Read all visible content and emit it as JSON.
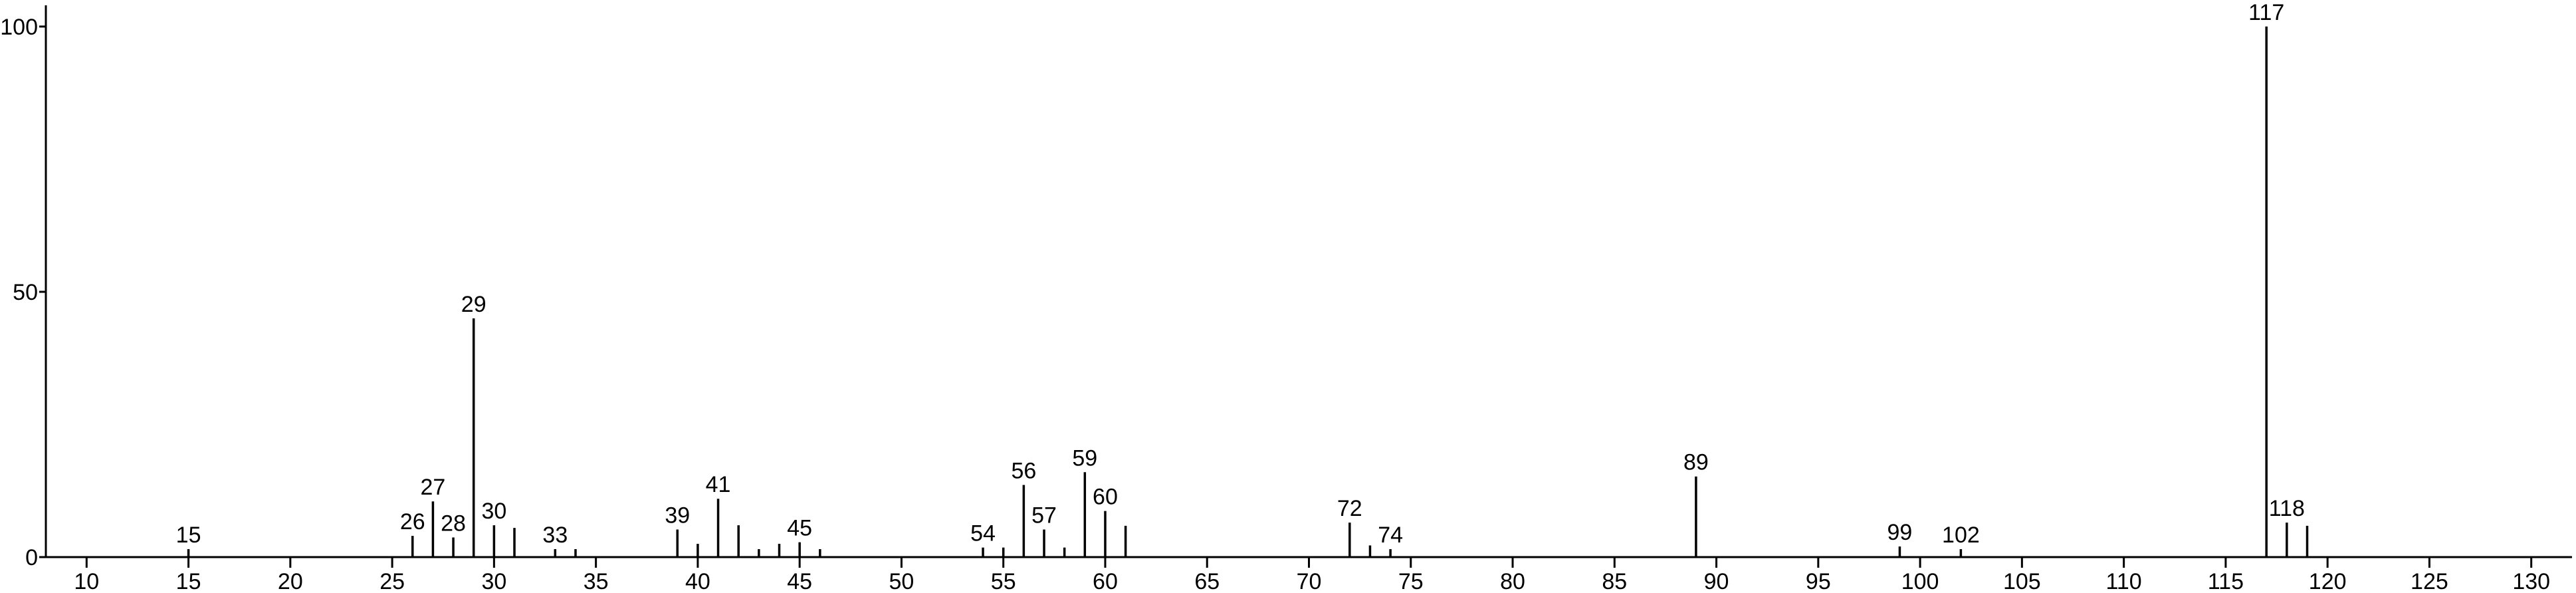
{
  "chart_data": {
    "type": "stem",
    "x": [
      15,
      26,
      27,
      28,
      29,
      30,
      31,
      33,
      34,
      39,
      40,
      41,
      42,
      43,
      44,
      45,
      46,
      54,
      55,
      56,
      57,
      58,
      59,
      60,
      61,
      72,
      73,
      74,
      89,
      99,
      102,
      117,
      118,
      119
    ],
    "values": [
      1.5,
      4,
      10.5,
      3.7,
      45,
      6,
      5.5,
      1.5,
      1.5,
      5.2,
      2.5,
      11,
      6,
      1.5,
      2.5,
      2.8,
      1.5,
      1.8,
      1.8,
      13.6,
      5.2,
      1.8,
      16,
      8.7,
      5.9,
      6.5,
      2.2,
      1.5,
      15.2,
      2,
      1.5,
      100,
      6.5,
      5.9
    ],
    "point_labels": [
      "15",
      "26",
      "27",
      "28",
      "29",
      "30",
      null,
      "33",
      null,
      "39",
      null,
      "41",
      null,
      null,
      null,
      "45",
      null,
      "54",
      null,
      "56",
      "57",
      null,
      "59",
      "60",
      null,
      "72",
      null,
      "74",
      "89",
      "99",
      "102",
      "117",
      "118",
      null
    ],
    "color": "#000000",
    "xlim": [
      8,
      132
    ],
    "xticks": [
      10,
      15,
      20,
      25,
      30,
      35,
      40,
      45,
      50,
      55,
      60,
      65,
      70,
      75,
      80,
      85,
      90,
      95,
      100,
      105,
      110,
      115,
      120,
      125,
      130
    ],
    "ylim": [
      0,
      104
    ],
    "yticks": [
      0,
      50,
      100
    ]
  }
}
